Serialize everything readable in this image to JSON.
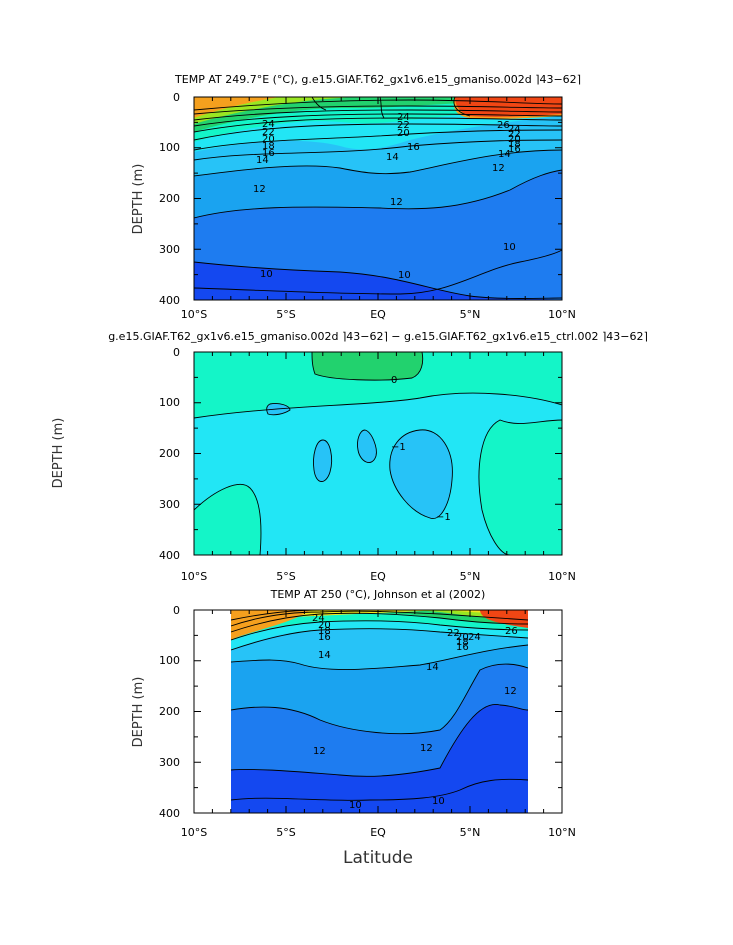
{
  "colors": {
    "deep_blue": "#1448f0",
    "mid_blue": "#1e7cf0",
    "light_blue": "#1aa3f0",
    "sky_blue": "#27c3f7",
    "cyan": "#22e6f5",
    "aqua": "#14f5c8",
    "green": "#22d26e",
    "yellow_green": "#9ae622",
    "yellow": "#f5e61e",
    "orange": "#f5a01e",
    "red_orange": "#f04614"
  },
  "shared": {
    "xticks": [
      "10°S",
      "5°S",
      "EQ",
      "5°N",
      "10°N"
    ],
    "xlabel": "Latitude"
  },
  "chart_data": [
    {
      "type": "heatmap",
      "title": "TEMP AT 249.7°E (°C), g.e15.GIAF.T62_gx1v6.e15_gmaniso.002d ⌉43−62⌉",
      "ylabel": "DEPTH (m)",
      "xlim": [
        -10,
        10
      ],
      "ylim": [
        400,
        0
      ],
      "yticks": [
        "0",
        "100",
        "200",
        "300",
        "400"
      ],
      "contour_labels": [
        "24",
        "22",
        "20",
        "18",
        "16",
        "14",
        "12",
        "10",
        "24",
        "22",
        "20",
        "16",
        "14",
        "12",
        "10",
        "26",
        "24",
        "22",
        "20",
        "18",
        "16",
        "14",
        "12",
        "10"
      ]
    },
    {
      "type": "heatmap",
      "title": "g.e15.GIAF.T62_gx1v6.e15_gmaniso.002d ⌉43−62⌉ − g.e15.GIAF.T62_gx1v6.e15_ctrl.002 ⌉43−62⌉",
      "ylabel": "DEPTH (m)",
      "xlim": [
        -10,
        10
      ],
      "ylim": [
        400,
        0
      ],
      "yticks": [
        "0",
        "100",
        "200",
        "300",
        "400"
      ],
      "contour_labels": [
        "0",
        "−1",
        "−1"
      ]
    },
    {
      "type": "heatmap",
      "title": "TEMP AT 250 (°C), Johnson et al (2002)",
      "ylabel": "DEPTH (m)",
      "xlabel": "Latitude",
      "xlim": [
        -10,
        10
      ],
      "ylim": [
        400,
        0
      ],
      "data_range": [
        -8.2,
        8.2
      ],
      "yticks": [
        "0",
        "100",
        "200",
        "300",
        "400"
      ],
      "contour_labels": [
        "24",
        "20",
        "18",
        "16",
        "14",
        "12",
        "10",
        "22",
        "20",
        "18",
        "16",
        "24",
        "26",
        "14",
        "12",
        "12",
        "10"
      ]
    }
  ]
}
